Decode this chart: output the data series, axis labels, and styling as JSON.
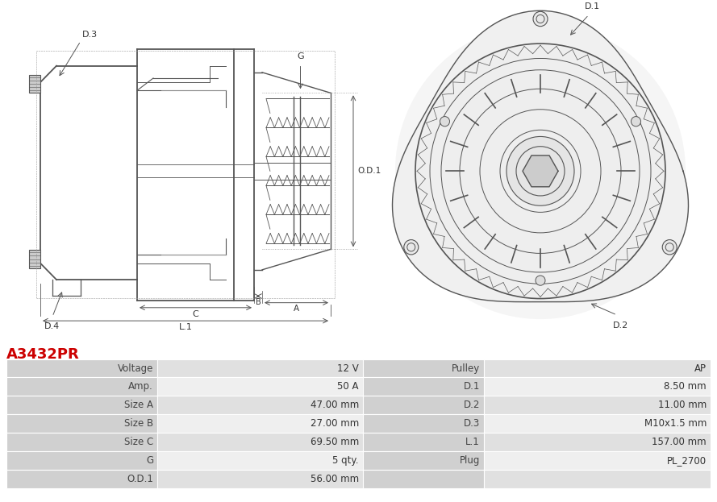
{
  "title": "A3432PR",
  "title_color": "#cc0000",
  "bg_color": "#ffffff",
  "table_header_bg": "#d0d0d0",
  "table_row_bg1": "#e0e0e0",
  "table_row_bg2": "#efefef",
  "left_col": [
    "Voltage",
    "Amp.",
    "Size A",
    "Size B",
    "Size C",
    "G",
    "O.D.1"
  ],
  "left_val": [
    "12 V",
    "50 A",
    "47.00 mm",
    "27.00 mm",
    "69.50 mm",
    "5 qty.",
    "56.00 mm"
  ],
  "right_col": [
    "Pulley",
    "D.1",
    "D.2",
    "D.3",
    "L.1",
    "Plug",
    ""
  ],
  "right_val": [
    "AP",
    "8.50 mm",
    "11.00 mm",
    "M10x1.5 mm",
    "157.00 mm",
    "PL_2700",
    ""
  ]
}
